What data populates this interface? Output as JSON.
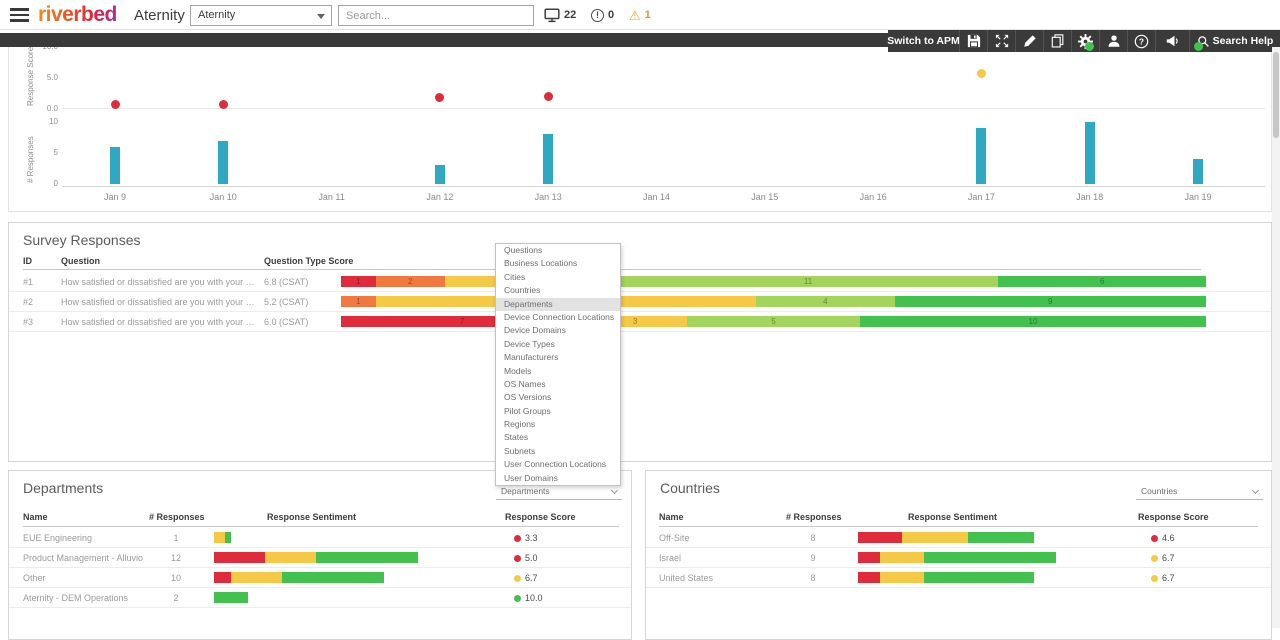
{
  "palette": {
    "red": "#e02b3c",
    "orange": "#f0793f",
    "yellow": "#f5c845",
    "light_green": "#a3d45c",
    "green": "#42c14f",
    "teal": "#2fa9c2",
    "warning_orange": "#eda52f",
    "toolbar_bg": "#3a3a3a"
  },
  "header": {
    "logo": "riverbed",
    "product": "Aternity",
    "workspace_select": "Aternity",
    "search_placeholder": "Search...",
    "monitor_count": "22",
    "alert_count": "0",
    "warning_count": "1"
  },
  "toolbar": {
    "switch_label": "Switch to APM",
    "search_help_label": "Search Help",
    "icons": [
      "save",
      "expand",
      "edit",
      "copy",
      "settings",
      "user",
      "help",
      "megaphone"
    ],
    "badge_icons": [
      "settings",
      "megaphone"
    ]
  },
  "chart_data": [
    {
      "type": "scatter",
      "ylabel": "Response Score",
      "ylim": [
        0,
        10
      ],
      "yticks": [
        "10.0",
        "5.0",
        "0.0"
      ],
      "x_categories": [
        "Jan 9",
        "Jan 10",
        "Jan 11",
        "Jan 12",
        "Jan 13",
        "Jan 14",
        "Jan 15",
        "Jan 16",
        "Jan 17",
        "Jan 18",
        "Jan 19"
      ],
      "points": [
        {
          "x": "Jan 9",
          "y": 0.6,
          "color": "red"
        },
        {
          "x": "Jan 10",
          "y": 0.6,
          "color": "red"
        },
        {
          "x": "Jan 12",
          "y": 1.7,
          "color": "red"
        },
        {
          "x": "Jan 13",
          "y": 1.9,
          "color": "red"
        },
        {
          "x": "Jan 17",
          "y": 5.5,
          "color": "yellow"
        },
        {
          "x": "Jan 18",
          "y": 10,
          "color": "green"
        },
        {
          "x": "Jan 19",
          "y": 10,
          "color": "green"
        }
      ]
    },
    {
      "type": "bar",
      "ylabel": "# Responses",
      "ylim": [
        0,
        10
      ],
      "yticks": [
        "10",
        "5",
        "0"
      ],
      "categories": [
        "Jan 9",
        "Jan 10",
        "Jan 11",
        "Jan 12",
        "Jan 13",
        "Jan 14",
        "Jan 15",
        "Jan 16",
        "Jan 17",
        "Jan 18",
        "Jan 19"
      ],
      "values": [
        6,
        7,
        0,
        3,
        8,
        0,
        0,
        0,
        9,
        10,
        4
      ],
      "color": "teal"
    }
  ],
  "survey": {
    "title": "Survey Responses",
    "columns": [
      "ID",
      "Question",
      "Question Type Score"
    ],
    "rows": [
      {
        "id": "#1",
        "question": "How satisfied or dissatisfied are you with your dev..",
        "type_score": "6.8 (CSAT)",
        "sentiment": [
          {
            "value": 1,
            "color": "red"
          },
          {
            "value": 2,
            "color": "orange"
          },
          {
            "value": 5,
            "color": "yellow"
          },
          {
            "value": 11,
            "color": "light_green"
          },
          {
            "value": 6,
            "color": "green"
          }
        ]
      },
      {
        "id": "#2",
        "question": "How satisfied or dissatisfied are you with your net..",
        "type_score": "5.2 (CSAT)",
        "sentiment": [
          {
            "value": 1,
            "color": "orange"
          },
          {
            "value": 11,
            "color": "yellow"
          },
          {
            "value": 4,
            "color": "light_green"
          },
          {
            "value": 9,
            "color": "green"
          }
        ]
      },
      {
        "id": "#3",
        "question": "How satisfied or dissatisfied are you with your app..",
        "type_score": "6.0 (CSAT)",
        "sentiment": [
          {
            "value": 7,
            "color": "red"
          },
          {
            "value": 3,
            "color": "yellow"
          },
          {
            "value": 5,
            "color": "light_green"
          },
          {
            "value": 10,
            "color": "green"
          }
        ]
      }
    ]
  },
  "dimension_menu": {
    "selected": "Departments",
    "items": [
      "Questions",
      "Business Locations",
      "Cities",
      "Countries",
      "Departments",
      "Device Connection Locations",
      "Device Domains",
      "Device Types",
      "Manufacturers",
      "Models",
      "OS Names",
      "OS Versions",
      "Pilot Groups",
      "Regions",
      "States",
      "Subnets",
      "User Connection Locations",
      "User Domains"
    ]
  },
  "departments": {
    "title": "Departments",
    "selector_value": "Departments",
    "columns": [
      "Name",
      "# Responses",
      "Response Sentiment",
      "Response Score"
    ],
    "rows": [
      {
        "name": "EUE Engineering",
        "responses": "1",
        "sentiment": [
          {
            "value": 0.65,
            "color": "yellow"
          },
          {
            "value": 0.35,
            "color": "green"
          }
        ],
        "score": "3.3",
        "score_color": "red"
      },
      {
        "name": "Product Management - Alluvio",
        "responses": "12",
        "sentiment": [
          {
            "value": 3,
            "color": "red"
          },
          {
            "value": 3,
            "color": "yellow"
          },
          {
            "value": 6,
            "color": "green"
          }
        ],
        "score": "5.0",
        "score_color": "red"
      },
      {
        "name": "Other",
        "responses": "10",
        "sentiment": [
          {
            "value": 1,
            "color": "red"
          },
          {
            "value": 3,
            "color": "yellow"
          },
          {
            "value": 6,
            "color": "green"
          }
        ],
        "score": "6.7",
        "score_color": "yellow"
      },
      {
        "name": "Aternity - DEM Operations",
        "responses": "2",
        "sentiment": [
          {
            "value": 2,
            "color": "green"
          }
        ],
        "score": "10.0",
        "score_color": "green"
      }
    ]
  },
  "countries": {
    "title": "Countries",
    "selector_value": "Countries",
    "columns": [
      "Name",
      "# Responses",
      "Response Sentiment",
      "Response Score"
    ],
    "rows": [
      {
        "name": "Off-Site",
        "responses": "8",
        "sentiment": [
          {
            "value": 2,
            "color": "red"
          },
          {
            "value": 3,
            "color": "yellow"
          },
          {
            "value": 3,
            "color": "green"
          }
        ],
        "score": "4.6",
        "score_color": "red"
      },
      {
        "name": "Israel",
        "responses": "9",
        "sentiment": [
          {
            "value": 1,
            "color": "red"
          },
          {
            "value": 2,
            "color": "yellow"
          },
          {
            "value": 6,
            "color": "green"
          }
        ],
        "score": "6.7",
        "score_color": "yellow"
      },
      {
        "name": "United States",
        "responses": "8",
        "sentiment": [
          {
            "value": 1,
            "color": "red"
          },
          {
            "value": 2,
            "color": "yellow"
          },
          {
            "value": 5,
            "color": "green"
          }
        ],
        "score": "6.7",
        "score_color": "yellow"
      }
    ]
  }
}
